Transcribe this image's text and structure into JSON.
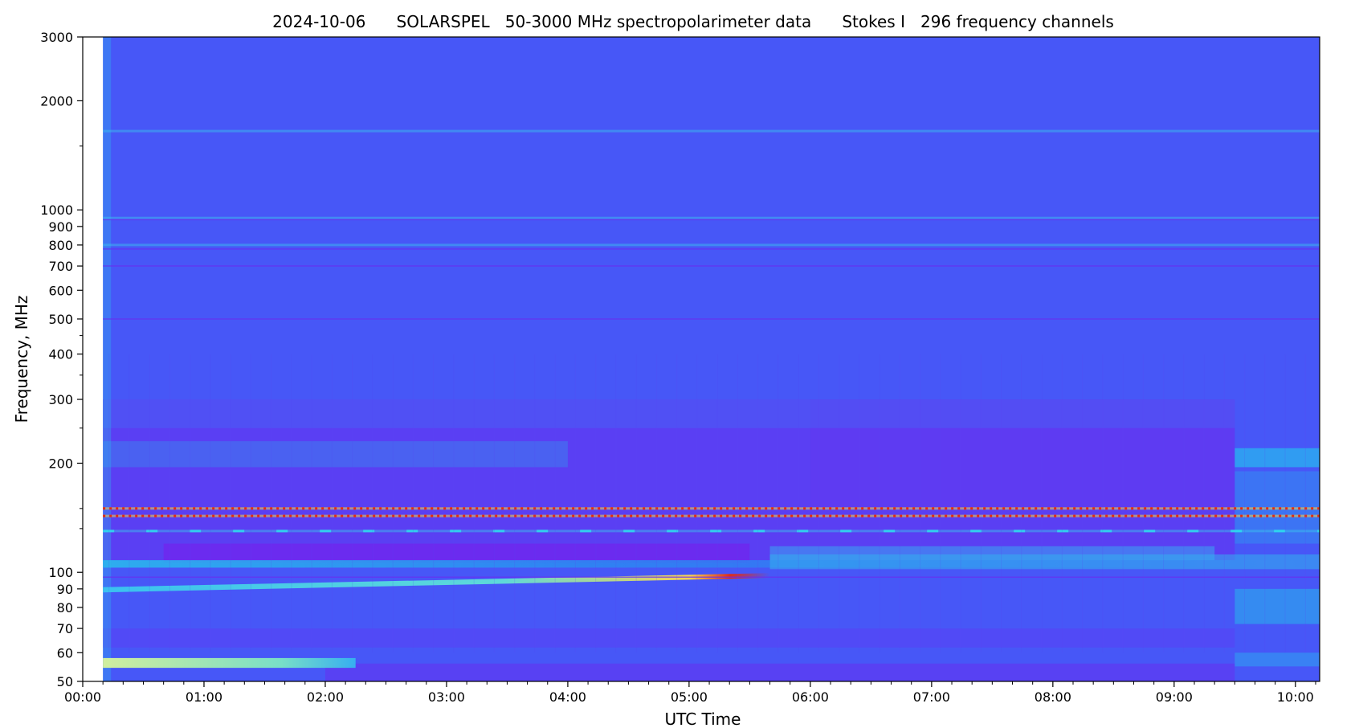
{
  "chart_data": {
    "type": "heatmap",
    "title": "2024-10-06      SOLARSPEL   50-3000 MHz spectropolarimeter data      Stokes I   296 frequency channels",
    "xlabel": "UTC Time",
    "ylabel": "Frequency, MHz",
    "x_range": [
      "00:00",
      "10:12"
    ],
    "x_ticks": [
      "00:00",
      "01:00",
      "02:00",
      "03:00",
      "04:00",
      "05:00",
      "06:00",
      "07:00",
      "08:00",
      "09:00",
      "10:00"
    ],
    "y_scale": "log",
    "y_range": [
      50,
      3000
    ],
    "y_ticks": [
      50,
      60,
      70,
      80,
      90,
      100,
      200,
      300,
      400,
      500,
      600,
      700,
      800,
      900,
      1000,
      2000,
      3000
    ],
    "data_start": "00:10",
    "grid": false,
    "colormap": "rainbow",
    "colors": {
      "background": "#4757f7",
      "low": "#6a2cf0",
      "mid": "#22b8ee",
      "high": "#e42a10",
      "bright": "#c8f290"
    },
    "features": [
      {
        "name": "narrowband interference",
        "freq_mhz": 150,
        "intensity": "high"
      },
      {
        "name": "narrowband interference",
        "freq_mhz": 143,
        "intensity": "high"
      },
      {
        "name": "intermittent interference",
        "freq_mhz": 130,
        "intensity": "mid"
      },
      {
        "name": "FM band",
        "freq_mhz": 98,
        "intensity": "high",
        "time": [
          "00:10",
          "05:40"
        ]
      },
      {
        "name": "low-frequency band",
        "freq_mhz": 56,
        "intensity": "bright",
        "time": [
          "00:10",
          "02:15"
        ]
      },
      {
        "name": "interference line",
        "freq_mhz": 950,
        "intensity": "mid"
      },
      {
        "name": "interference line",
        "freq_mhz": 1650,
        "intensity": "mid"
      },
      {
        "name": "interference line",
        "freq_mhz": 800,
        "intensity": "mid"
      }
    ]
  }
}
